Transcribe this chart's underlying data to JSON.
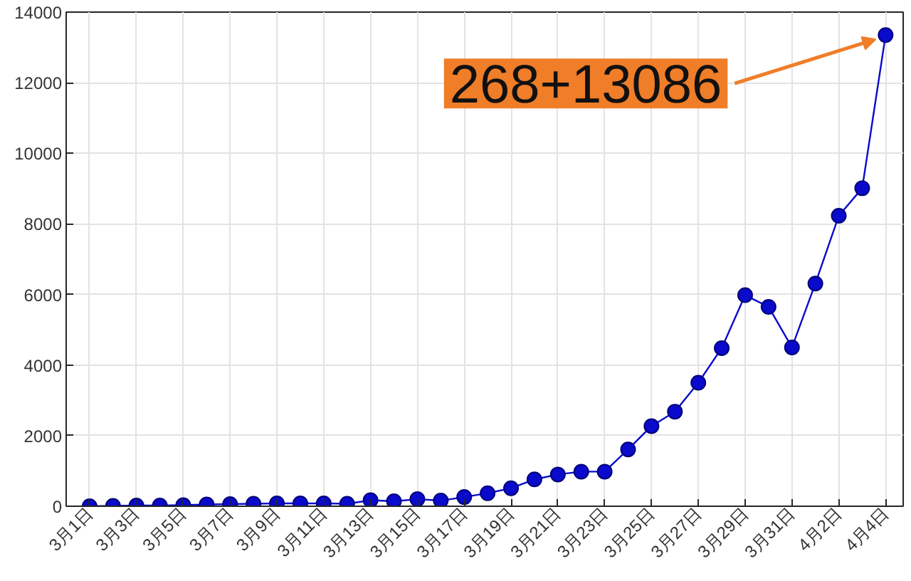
{
  "chart_data": {
    "type": "line",
    "categories": [
      "3月1日",
      null,
      "3月3日",
      null,
      "3月5日",
      null,
      "3月7日",
      null,
      "3月9日",
      null,
      "3月11日",
      null,
      "3月13日",
      null,
      "3月15日",
      null,
      "3月17日",
      null,
      "3月19日",
      null,
      "3月21日",
      null,
      "3月23日",
      null,
      "3月25日",
      null,
      "3月27日",
      null,
      "3月29日",
      null,
      "3月31日",
      null,
      "4月2日",
      null,
      "4月4日"
    ],
    "series": [
      {
        "color": "#0a0acc",
        "values": [
          0,
          10,
          20,
          20,
          30,
          50,
          60,
          70,
          80,
          80,
          80,
          70,
          170,
          140,
          200,
          160,
          260,
          370,
          510,
          760,
          900,
          980,
          980,
          1610,
          2270,
          2680,
          3500,
          4480,
          5980,
          5650,
          4500,
          6310,
          8230,
          9010,
          13350
        ]
      }
    ],
    "ylim": [
      0,
      14000
    ],
    "yticks": [
      0,
      2000,
      4000,
      6000,
      8000,
      10000,
      12000,
      14000
    ],
    "grid": true,
    "marker": "circle",
    "line_style": "solid",
    "annotations": [
      {
        "text": "268+13086",
        "x": "4月4日",
        "y": 13350
      }
    ]
  }
}
